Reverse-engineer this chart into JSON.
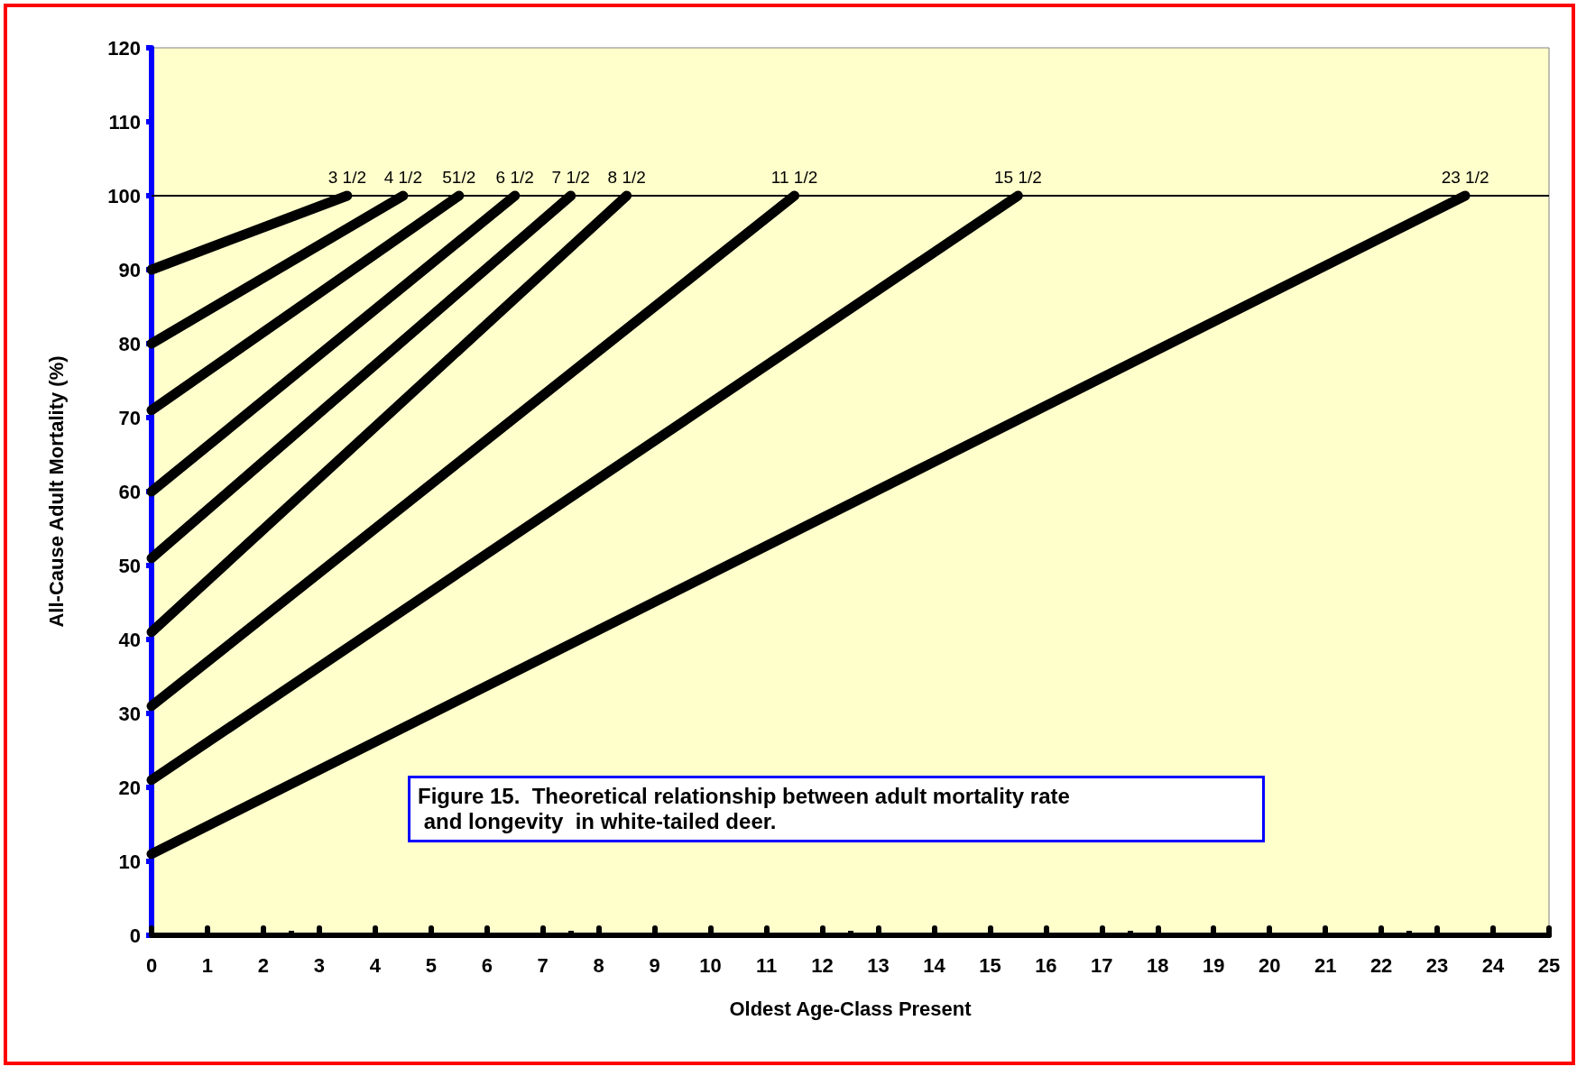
{
  "chart_data": {
    "type": "line",
    "xlabel": "Oldest Age-Class Present",
    "ylabel": "All-Cause Adult Mortality (%)",
    "xlim": [
      0,
      25
    ],
    "xticks": [
      0,
      1,
      2,
      3,
      4,
      5,
      6,
      7,
      8,
      9,
      10,
      11,
      12,
      13,
      14,
      15,
      16,
      17,
      18,
      19,
      20,
      21,
      22,
      23,
      24,
      25
    ],
    "ylim": [
      0,
      120
    ],
    "yticks": [
      0,
      10,
      20,
      30,
      40,
      50,
      60,
      70,
      80,
      90,
      100,
      110,
      120
    ],
    "grid": false,
    "legend": false,
    "line_style": "solid",
    "ref_lines": [
      {
        "axis": "y",
        "value": 100,
        "color": "#000000"
      }
    ],
    "annotations": [
      "Figure 15.  Theoretical relationship between adult mortality rate\n and longevity  in white-tailed deer."
    ],
    "series": [
      {
        "name": "3 1/2",
        "color": "#000000",
        "x": [
          0,
          3.5
        ],
        "values": [
          90,
          100
        ]
      },
      {
        "name": "4 1/2",
        "color": "#000000",
        "x": [
          0,
          4.5
        ],
        "values": [
          80,
          100
        ]
      },
      {
        "name": "51/2",
        "color": "#000000",
        "x": [
          0,
          5.5
        ],
        "values": [
          71,
          100
        ]
      },
      {
        "name": "6 1/2",
        "color": "#000000",
        "x": [
          0,
          6.5
        ],
        "values": [
          60,
          100
        ]
      },
      {
        "name": "7 1/2",
        "color": "#000000",
        "x": [
          0,
          7.5
        ],
        "values": [
          51,
          100
        ]
      },
      {
        "name": "8 1/2",
        "color": "#000000",
        "x": [
          0,
          8.5
        ],
        "values": [
          41,
          100
        ]
      },
      {
        "name": "11 1/2",
        "color": "#000000",
        "x": [
          0,
          11.5
        ],
        "values": [
          31,
          100
        ]
      },
      {
        "name": "15 1/2",
        "color": "#000000",
        "x": [
          0,
          15.5
        ],
        "values": [
          21,
          100
        ]
      },
      {
        "name": "23 1/2",
        "color": "#000000",
        "x": [
          0,
          23.5
        ],
        "values": [
          11,
          100
        ]
      }
    ]
  }
}
